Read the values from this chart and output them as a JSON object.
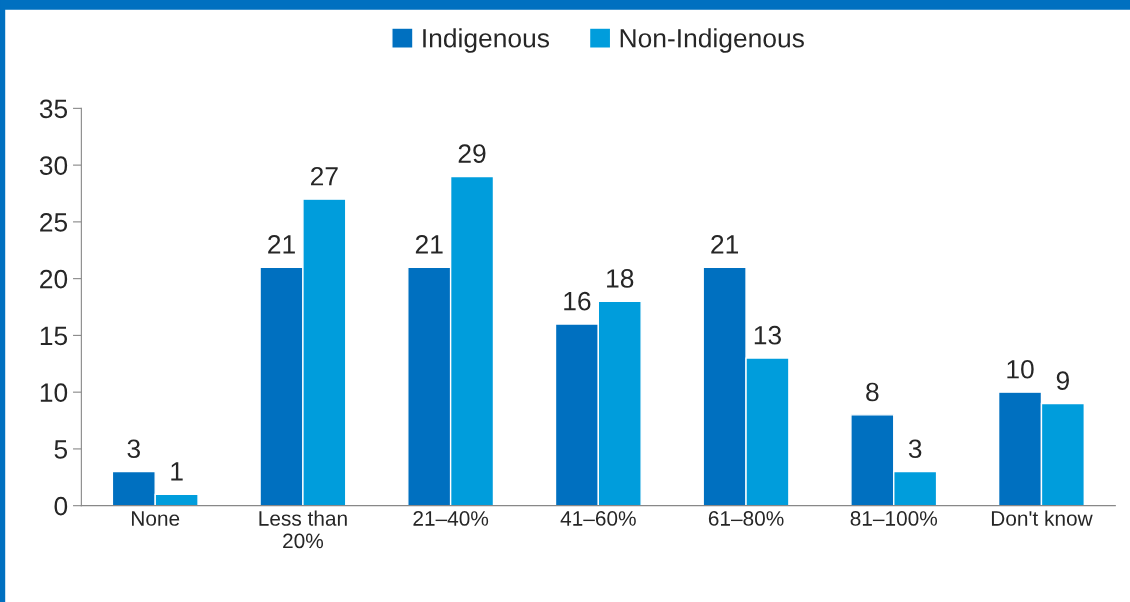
{
  "chart_data": {
    "type": "bar",
    "categories": [
      "None",
      "Less than\n20%",
      "21–40%",
      "41–60%",
      "61–80%",
      "81–100%",
      "Don't know"
    ],
    "series": [
      {
        "name": "Indigenous",
        "color": "#0070c0",
        "values": [
          3,
          21,
          21,
          16,
          21,
          8,
          10
        ]
      },
      {
        "name": "Non-Indigenous",
        "color": "#009ddc",
        "values": [
          1,
          27,
          29,
          18,
          13,
          3,
          9
        ]
      }
    ],
    "ylim": [
      0,
      35
    ],
    "yticks": [
      0,
      5,
      10,
      15,
      20,
      25,
      30,
      35
    ],
    "data_labels": true,
    "grid": false,
    "legend": "top"
  }
}
